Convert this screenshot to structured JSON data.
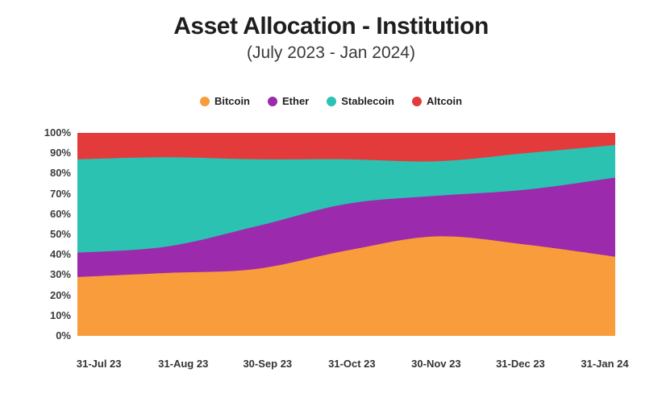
{
  "header": {
    "title": "Asset Allocation - Institution",
    "subtitle": "(July 2023 - Jan 2024)"
  },
  "chart_data": {
    "type": "area",
    "stacked": true,
    "title": "Asset Allocation - Institution",
    "subtitle": "(July 2023 - Jan 2024)",
    "categories": [
      "31-Jul 23",
      "31-Aug 23",
      "30-Sep 23",
      "31-Oct 23",
      "30-Nov 23",
      "31-Dec 23",
      "31-Jan 24"
    ],
    "series": [
      {
        "name": "Bitcoin",
        "color": "#F89C3C",
        "values": [
          29,
          31,
          33,
          42,
          49,
          45,
          39
        ]
      },
      {
        "name": "Ether",
        "color": "#9C2AAC",
        "values": [
          12,
          13,
          21,
          23,
          20,
          27,
          39
        ]
      },
      {
        "name": "Stablecoin",
        "color": "#2BC2B1",
        "values": [
          46,
          44,
          33,
          22,
          17,
          18,
          16
        ]
      },
      {
        "name": "Altcoin",
        "color": "#E33B3C",
        "values": [
          13,
          12,
          13,
          13,
          14,
          10,
          6
        ]
      }
    ],
    "unit": "%",
    "xlabel": "",
    "ylabel": "",
    "ylim": [
      0,
      100
    ],
    "y_tick_step": 10,
    "y_tick_labels": [
      "100%",
      "90%",
      "80%",
      "70%",
      "60%",
      "50%",
      "40%",
      "30%",
      "20%",
      "10%",
      "0%"
    ],
    "grid": false,
    "legend_position": "top"
  }
}
